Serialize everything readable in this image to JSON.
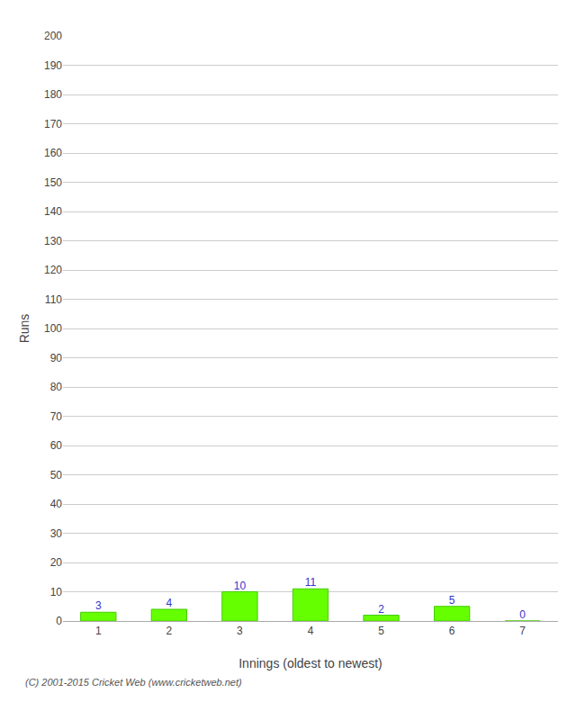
{
  "chart_data": {
    "type": "bar",
    "categories": [
      "1",
      "2",
      "3",
      "4",
      "5",
      "6",
      "7"
    ],
    "values": [
      3,
      4,
      10,
      11,
      2,
      5,
      0
    ],
    "color": "#66ff00",
    "xlabel": "Innings (oldest to newest)",
    "ylabel": "Runs",
    "ylim": [
      0,
      200
    ],
    "yticks": [
      0,
      10,
      20,
      30,
      40,
      50,
      60,
      70,
      80,
      90,
      100,
      110,
      120,
      130,
      140,
      150,
      160,
      170,
      180,
      190,
      200
    ],
    "grid": true,
    "data_labels": true,
    "annotations": [
      "(C) 2001-2015 Cricket Web (www.cricketweb.net)"
    ]
  }
}
